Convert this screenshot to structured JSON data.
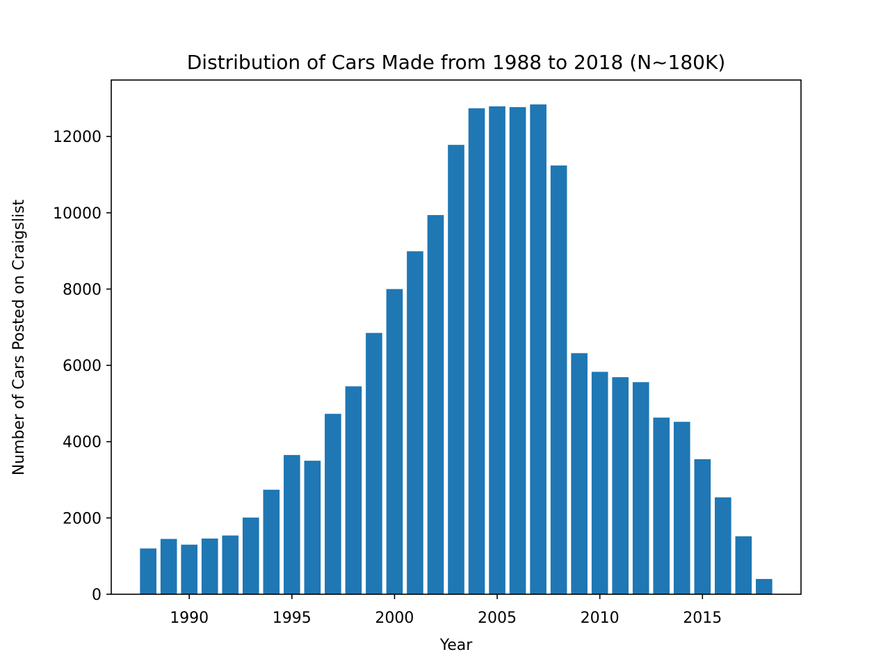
{
  "chart_data": {
    "type": "bar",
    "title": "Distribution of Cars Made from 1988 to 2018 (N~180K)",
    "xlabel": "Year",
    "ylabel": "Number of Cars Posted on Craigslist",
    "x": [
      1988,
      1989,
      1990,
      1991,
      1992,
      1993,
      1994,
      1995,
      1996,
      1997,
      1998,
      1999,
      2000,
      2001,
      2002,
      2003,
      2004,
      2005,
      2006,
      2007,
      2008,
      2009,
      2010,
      2011,
      2012,
      2013,
      2014,
      2015,
      2016,
      2017,
      2018
    ],
    "values": [
      1200,
      1450,
      1300,
      1460,
      1540,
      2010,
      2740,
      3650,
      3500,
      4730,
      5450,
      6850,
      8000,
      8990,
      9940,
      11780,
      12740,
      12790,
      12770,
      12840,
      11240,
      6320,
      5830,
      5690,
      5560,
      4630,
      4520,
      3540,
      2540,
      1520,
      400
    ],
    "xlim": [
      1986.2,
      2019.8
    ],
    "ylim": [
      0,
      13480
    ],
    "xticks": [
      1990,
      1995,
      2000,
      2005,
      2010,
      2015
    ],
    "xtick_labels": [
      "1990",
      "1995",
      "2000",
      "2005",
      "2010",
      "2015"
    ],
    "yticks": [
      0,
      2000,
      4000,
      6000,
      8000,
      10000,
      12000
    ],
    "ytick_labels": [
      "0",
      "2000",
      "4000",
      "6000",
      "8000",
      "10000",
      "12000"
    ],
    "bar_color": "#1f77b4",
    "grid": false,
    "legend": false
  }
}
